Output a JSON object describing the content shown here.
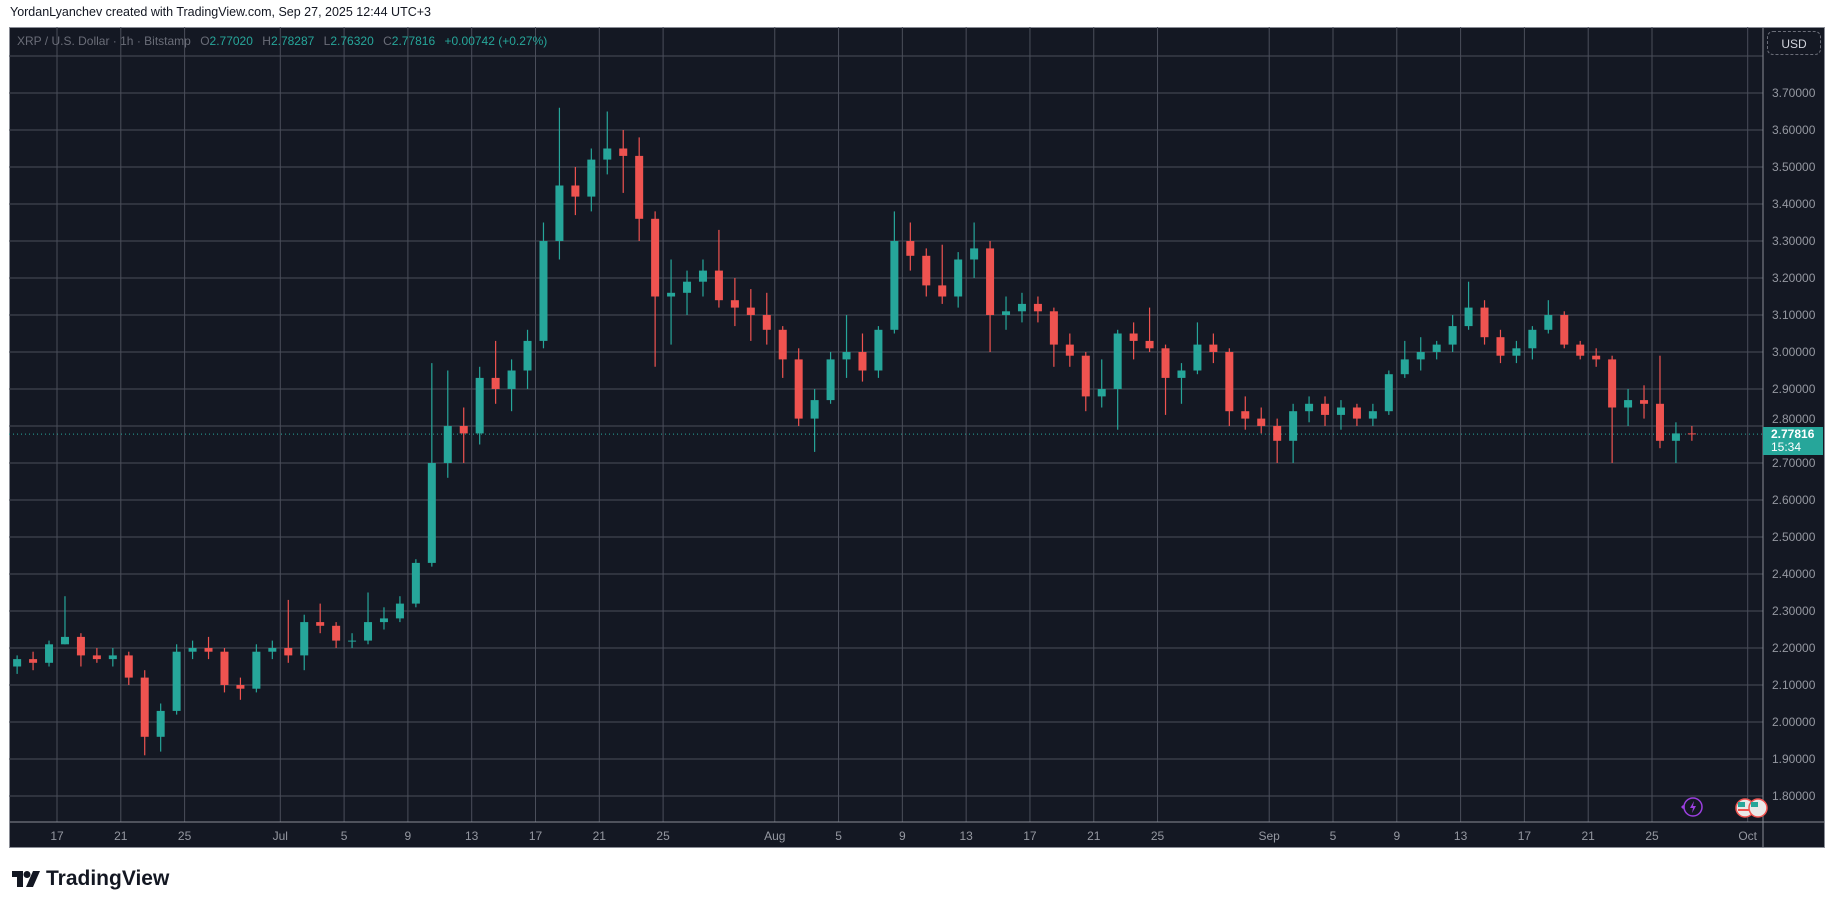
{
  "credit": "YordanLyanchev created with TradingView.com, Sep 27, 2025 12:44 UTC+3",
  "legend": {
    "symbol": "XRP / U.S. Dollar · 1h · Bitstamp",
    "o_label": "O",
    "o": "2.77020",
    "h_label": "H",
    "h": "2.78287",
    "l_label": "L",
    "l": "2.76320",
    "c_label": "C",
    "c": "2.77816",
    "change": "+0.00742 (+0.27%)"
  },
  "currency_button": "USD",
  "last_price": {
    "price": "2.77816",
    "countdown": "15:34"
  },
  "logo": "TradingView",
  "icons": [
    "lightning-icon",
    "us-flag-icon",
    "us-flag-icon"
  ],
  "colors": {
    "up": "#26a69a",
    "down": "#ef5350",
    "background": "#141823",
    "grid": "#4a4e5a",
    "last_price": "#26a69a",
    "event_icon": "#9c3fe0"
  },
  "chart_data": {
    "type": "candlestick",
    "interval": "1h",
    "note_resolution": "daily approximation",
    "ylim": [
      1.75,
      3.82
    ],
    "grid": true,
    "y_ticks": [
      "3.70000",
      "3.60000",
      "3.50000",
      "3.40000",
      "3.30000",
      "3.20000",
      "3.10000",
      "3.00000",
      "2.90000",
      "2.80000",
      "2.70000",
      "2.60000",
      "2.50000",
      "2.40000",
      "2.30000",
      "2.20000",
      "2.10000",
      "2.00000",
      "1.90000",
      "1.80000"
    ],
    "x_ticks": [
      {
        "label": "17",
        "date": "2025-06-17"
      },
      {
        "label": "21",
        "date": "2025-06-21"
      },
      {
        "label": "25",
        "date": "2025-06-25"
      },
      {
        "label": "Jul",
        "date": "2025-07-01"
      },
      {
        "label": "5",
        "date": "2025-07-05"
      },
      {
        "label": "9",
        "date": "2025-07-09"
      },
      {
        "label": "13",
        "date": "2025-07-13"
      },
      {
        "label": "17",
        "date": "2025-07-17"
      },
      {
        "label": "21",
        "date": "2025-07-21"
      },
      {
        "label": "25",
        "date": "2025-07-25"
      },
      {
        "label": "Aug",
        "date": "2025-08-01"
      },
      {
        "label": "5",
        "date": "2025-08-05"
      },
      {
        "label": "9",
        "date": "2025-08-09"
      },
      {
        "label": "13",
        "date": "2025-08-13"
      },
      {
        "label": "17",
        "date": "2025-08-17"
      },
      {
        "label": "21",
        "date": "2025-08-21"
      },
      {
        "label": "25",
        "date": "2025-08-25"
      },
      {
        "label": "Sep",
        "date": "2025-09-01"
      },
      {
        "label": "5",
        "date": "2025-09-05"
      },
      {
        "label": "9",
        "date": "2025-09-09"
      },
      {
        "label": "13",
        "date": "2025-09-13"
      },
      {
        "label": "17",
        "date": "2025-09-17"
      },
      {
        "label": "21",
        "date": "2025-09-21"
      },
      {
        "label": "25",
        "date": "2025-09-25"
      },
      {
        "label": "Oct",
        "date": "2025-10-01"
      }
    ],
    "start_date": "2025-06-14",
    "ohlc": [
      [
        2.15,
        2.18,
        2.13,
        2.17
      ],
      [
        2.17,
        2.19,
        2.14,
        2.16
      ],
      [
        2.16,
        2.22,
        2.15,
        2.21
      ],
      [
        2.21,
        2.34,
        2.21,
        2.23
      ],
      [
        2.23,
        2.24,
        2.15,
        2.18
      ],
      [
        2.18,
        2.2,
        2.16,
        2.17
      ],
      [
        2.17,
        2.2,
        2.15,
        2.18
      ],
      [
        2.18,
        2.19,
        2.1,
        2.12
      ],
      [
        2.12,
        2.14,
        1.91,
        1.96
      ],
      [
        1.96,
        2.05,
        1.92,
        2.03
      ],
      [
        2.03,
        2.21,
        2.02,
        2.19
      ],
      [
        2.19,
        2.22,
        2.17,
        2.2
      ],
      [
        2.2,
        2.23,
        2.17,
        2.19
      ],
      [
        2.19,
        2.2,
        2.08,
        2.1
      ],
      [
        2.1,
        2.12,
        2.06,
        2.09
      ],
      [
        2.09,
        2.21,
        2.08,
        2.19
      ],
      [
        2.19,
        2.22,
        2.17,
        2.2
      ],
      [
        2.2,
        2.33,
        2.16,
        2.18
      ],
      [
        2.18,
        2.29,
        2.14,
        2.27
      ],
      [
        2.27,
        2.32,
        2.24,
        2.26
      ],
      [
        2.26,
        2.27,
        2.2,
        2.22
      ],
      [
        2.22,
        2.24,
        2.2,
        2.22
      ],
      [
        2.22,
        2.35,
        2.21,
        2.27
      ],
      [
        2.27,
        2.31,
        2.25,
        2.28
      ],
      [
        2.28,
        2.34,
        2.27,
        2.32
      ],
      [
        2.32,
        2.44,
        2.31,
        2.43
      ],
      [
        2.43,
        2.97,
        2.42,
        2.7
      ],
      [
        2.7,
        2.95,
        2.66,
        2.8
      ],
      [
        2.8,
        2.85,
        2.7,
        2.78
      ],
      [
        2.78,
        2.96,
        2.75,
        2.93
      ],
      [
        2.93,
        3.03,
        2.86,
        2.9
      ],
      [
        2.9,
        2.98,
        2.84,
        2.95
      ],
      [
        2.95,
        3.06,
        2.9,
        3.03
      ],
      [
        3.03,
        3.35,
        3.01,
        3.3
      ],
      [
        3.3,
        3.66,
        3.25,
        3.45
      ],
      [
        3.45,
        3.5,
        3.37,
        3.42
      ],
      [
        3.42,
        3.55,
        3.38,
        3.52
      ],
      [
        3.52,
        3.65,
        3.48,
        3.55
      ],
      [
        3.55,
        3.6,
        3.43,
        3.53
      ],
      [
        3.53,
        3.58,
        3.3,
        3.36
      ],
      [
        3.36,
        3.38,
        2.96,
        3.15
      ],
      [
        3.15,
        3.25,
        3.02,
        3.16
      ],
      [
        3.16,
        3.22,
        3.1,
        3.19
      ],
      [
        3.19,
        3.25,
        3.15,
        3.22
      ],
      [
        3.22,
        3.33,
        3.12,
        3.14
      ],
      [
        3.14,
        3.2,
        3.07,
        3.12
      ],
      [
        3.12,
        3.17,
        3.03,
        3.1
      ],
      [
        3.1,
        3.16,
        3.02,
        3.06
      ],
      [
        3.06,
        3.07,
        2.93,
        2.98
      ],
      [
        2.98,
        3.01,
        2.8,
        2.82
      ],
      [
        2.82,
        2.9,
        2.73,
        2.87
      ],
      [
        2.87,
        3.0,
        2.86,
        2.98
      ],
      [
        2.98,
        3.1,
        2.93,
        3.0
      ],
      [
        3.0,
        3.05,
        2.92,
        2.95
      ],
      [
        2.95,
        3.07,
        2.93,
        3.06
      ],
      [
        3.06,
        3.38,
        3.05,
        3.3
      ],
      [
        3.3,
        3.35,
        3.22,
        3.26
      ],
      [
        3.26,
        3.28,
        3.15,
        3.18
      ],
      [
        3.18,
        3.29,
        3.13,
        3.15
      ],
      [
        3.15,
        3.27,
        3.12,
        3.25
      ],
      [
        3.25,
        3.35,
        3.2,
        3.28
      ],
      [
        3.28,
        3.3,
        3.0,
        3.1
      ],
      [
        3.1,
        3.15,
        3.06,
        3.11
      ],
      [
        3.11,
        3.16,
        3.08,
        3.13
      ],
      [
        3.13,
        3.15,
        3.08,
        3.11
      ],
      [
        3.11,
        3.12,
        2.96,
        3.02
      ],
      [
        3.02,
        3.05,
        2.96,
        2.99
      ],
      [
        2.99,
        3.0,
        2.84,
        2.88
      ],
      [
        2.88,
        2.98,
        2.85,
        2.9
      ],
      [
        2.9,
        3.06,
        2.79,
        3.05
      ],
      [
        3.05,
        3.08,
        2.98,
        3.03
      ],
      [
        3.03,
        3.12,
        3.0,
        3.01
      ],
      [
        3.01,
        3.02,
        2.83,
        2.93
      ],
      [
        2.93,
        2.97,
        2.86,
        2.95
      ],
      [
        2.95,
        3.08,
        2.94,
        3.02
      ],
      [
        3.02,
        3.05,
        2.97,
        3.0
      ],
      [
        3.0,
        3.01,
        2.8,
        2.84
      ],
      [
        2.84,
        2.88,
        2.79,
        2.82
      ],
      [
        2.82,
        2.85,
        2.78,
        2.8
      ],
      [
        2.8,
        2.82,
        2.7,
        2.76
      ],
      [
        2.76,
        2.86,
        2.7,
        2.84
      ],
      [
        2.84,
        2.88,
        2.81,
        2.86
      ],
      [
        2.86,
        2.88,
        2.8,
        2.83
      ],
      [
        2.83,
        2.87,
        2.79,
        2.85
      ],
      [
        2.85,
        2.86,
        2.8,
        2.82
      ],
      [
        2.82,
        2.86,
        2.8,
        2.84
      ],
      [
        2.84,
        2.95,
        2.83,
        2.94
      ],
      [
        2.94,
        3.03,
        2.93,
        2.98
      ],
      [
        2.98,
        3.04,
        2.95,
        3.0
      ],
      [
        3.0,
        3.03,
        2.98,
        3.02
      ],
      [
        3.02,
        3.1,
        3.0,
        3.07
      ],
      [
        3.07,
        3.19,
        3.06,
        3.12
      ],
      [
        3.12,
        3.14,
        3.02,
        3.04
      ],
      [
        3.04,
        3.06,
        2.97,
        2.99
      ],
      [
        2.99,
        3.03,
        2.97,
        3.01
      ],
      [
        3.01,
        3.07,
        2.98,
        3.06
      ],
      [
        3.06,
        3.14,
        3.05,
        3.1
      ],
      [
        3.1,
        3.11,
        3.01,
        3.02
      ],
      [
        3.02,
        3.03,
        2.98,
        2.99
      ],
      [
        2.99,
        3.01,
        2.96,
        2.98
      ],
      [
        2.98,
        2.99,
        2.7,
        2.85
      ],
      [
        2.85,
        2.9,
        2.8,
        2.87
      ],
      [
        2.87,
        2.91,
        2.82,
        2.86
      ],
      [
        2.86,
        2.99,
        2.74,
        2.76
      ],
      [
        2.76,
        2.81,
        2.7,
        2.78
      ],
      [
        2.78,
        2.8,
        2.76,
        2.77816
      ]
    ],
    "last_price": 2.77816
  }
}
